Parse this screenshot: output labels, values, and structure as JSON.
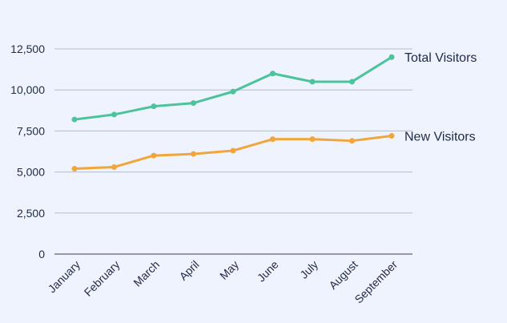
{
  "chart_data": {
    "type": "line",
    "title": "",
    "xlabel": "",
    "ylabel": "",
    "categories": [
      "January",
      "February",
      "March",
      "April",
      "May",
      "June",
      "July",
      "August",
      "September"
    ],
    "ylim": [
      0,
      12500
    ],
    "yticks": [
      0,
      2500,
      5000,
      7500,
      10000,
      12500
    ],
    "ytick_labels": [
      "0",
      "2,500",
      "5,000",
      "7,500",
      "10,000",
      "12,500"
    ],
    "grid": true,
    "legend": "inline-right",
    "series": [
      {
        "name": "Total Visitors",
        "color": "#4cc39a",
        "values": [
          8200,
          8500,
          9000,
          9200,
          9900,
          11000,
          10500,
          10500,
          12000
        ]
      },
      {
        "name": "New Visitors",
        "color": "#f0a63a",
        "values": [
          5200,
          5300,
          6000,
          6100,
          6300,
          7000,
          7000,
          6900,
          7200
        ]
      }
    ]
  }
}
